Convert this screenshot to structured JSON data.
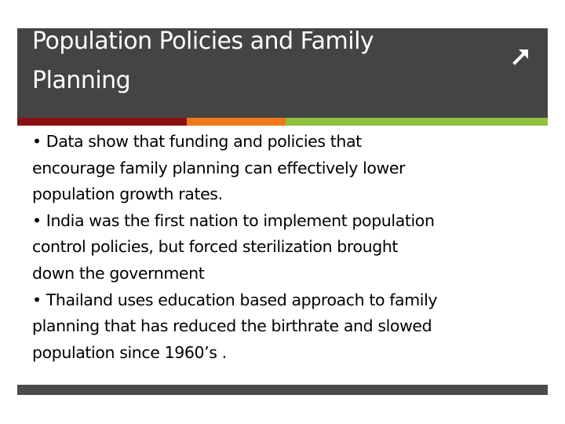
{
  "slide": {
    "title_lines": [
      "Population Policies and Family",
      "Planning"
    ],
    "body_lines": [
      "• Data show that funding and policies that",
      "encourage family planning can effectively lower",
      "population growth rates.",
      "• India was the first nation to implement population",
      "control policies, but forced sterilization brought",
      "down the government",
      "• Thailand uses education based approach to family",
      "planning that has reduced the birthrate and slowed",
      "population since 1960’s ."
    ],
    "corner_icon": "diagonal-arrow-icon"
  },
  "colors": {
    "title_band": "#444444",
    "title_text": "#ffffff",
    "stripe_red": "#8b1111",
    "stripe_orange": "#f07818",
    "stripe_green": "#90c040",
    "bottom_bar": "#4a4a4a",
    "body_text": "#000000"
  }
}
